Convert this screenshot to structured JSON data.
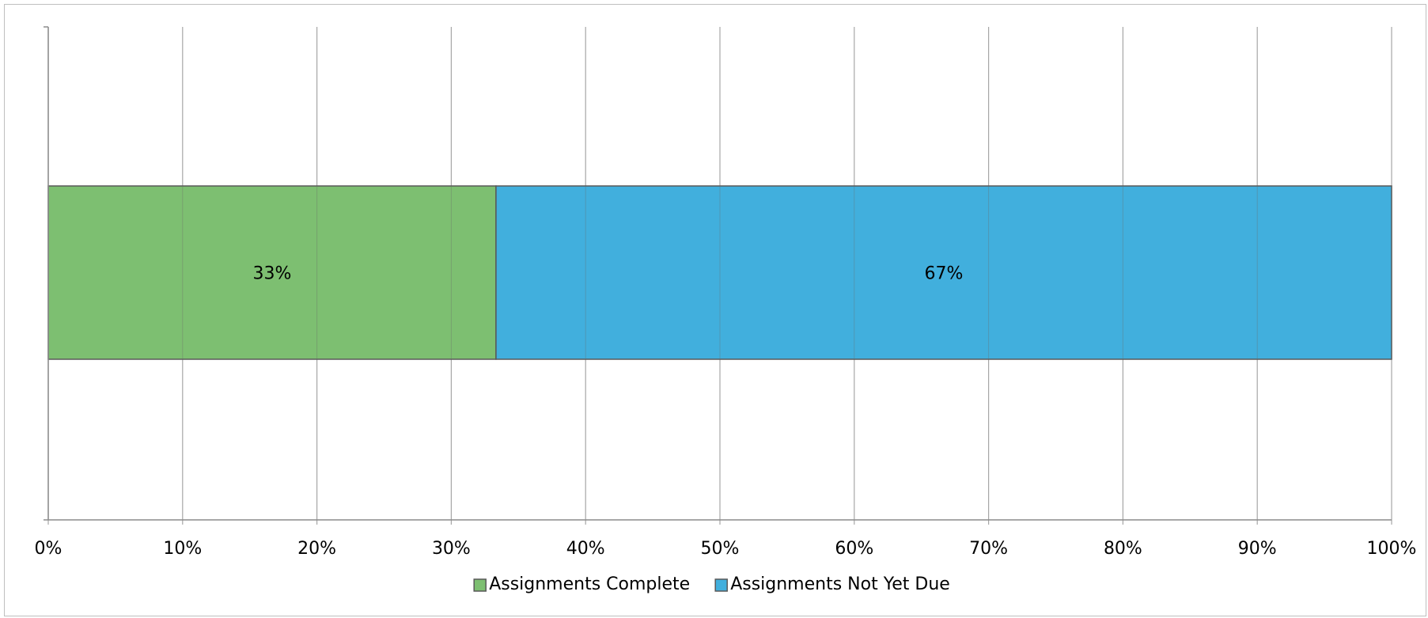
{
  "chart_data": {
    "type": "bar",
    "orientation": "horizontal",
    "stacked": true,
    "percent_stacked": true,
    "title": "",
    "xlabel": "",
    "ylabel": "",
    "xlim": [
      0,
      100
    ],
    "x_ticks": [
      "0%",
      "10%",
      "20%",
      "30%",
      "40%",
      "50%",
      "60%",
      "70%",
      "80%",
      "90%",
      "100%"
    ],
    "grid": true,
    "legend_position": "bottom",
    "categories": [
      ""
    ],
    "series": [
      {
        "name": "Assignments Complete",
        "values": [
          33.33
        ],
        "label": "33%",
        "color": "#7dbf71"
      },
      {
        "name": "Assignments Not Yet Due",
        "values": [
          66.67
        ],
        "label": "67%",
        "color": "#41afdd"
      }
    ]
  }
}
